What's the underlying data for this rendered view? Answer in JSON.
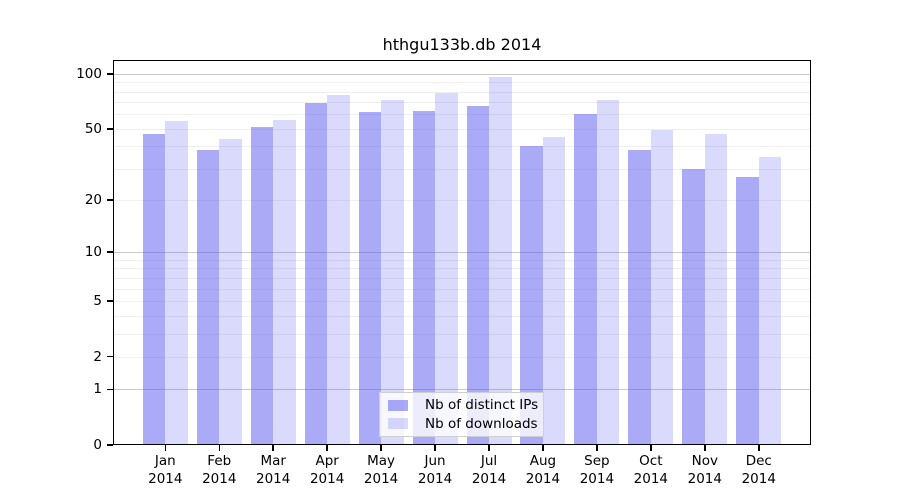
{
  "title": "hthgu133b.db 2014",
  "chart_data": {
    "type": "bar",
    "title": "hthgu133b.db 2014",
    "categories": [
      "Jan",
      "Feb",
      "Mar",
      "Apr",
      "May",
      "Jun",
      "Jul",
      "Aug",
      "Sep",
      "Oct",
      "Nov",
      "Dec"
    ],
    "category_year": "2014",
    "series": [
      {
        "name": "Nb of distinct IPs",
        "color": "rgba(85,85,240,0.50)",
        "values": [
          47,
          38,
          51,
          69,
          62,
          63,
          67,
          40,
          60,
          38,
          30,
          27
        ]
      },
      {
        "name": "Nb of downloads",
        "color": "rgba(85,85,240,0.22)",
        "values": [
          55,
          44,
          56,
          77,
          72,
          79,
          96,
          45,
          72,
          49,
          47,
          35
        ]
      }
    ],
    "xlabel": "",
    "ylabel": "",
    "yscale": "log1p",
    "ylim": [
      0,
      119
    ],
    "ytick_labels": [
      "100",
      "50",
      "20",
      "10",
      "5",
      "2",
      "1",
      "0"
    ],
    "ytick_values": [
      100,
      50,
      20,
      10,
      5,
      2,
      1,
      0
    ],
    "major_gridlines": [
      1,
      10,
      100
    ],
    "minor_gridlines": [
      2,
      3,
      4,
      5,
      6,
      7,
      8,
      9,
      20,
      30,
      40,
      50,
      60,
      70,
      80,
      90
    ],
    "grid": true,
    "legend_position": "inside-bottom-center",
    "bar_border": "none",
    "background_color": "#ffffff",
    "axis_color": "#000000",
    "major_grid_color": "#c9c9c9",
    "minor_grid_color": "#efefef"
  }
}
